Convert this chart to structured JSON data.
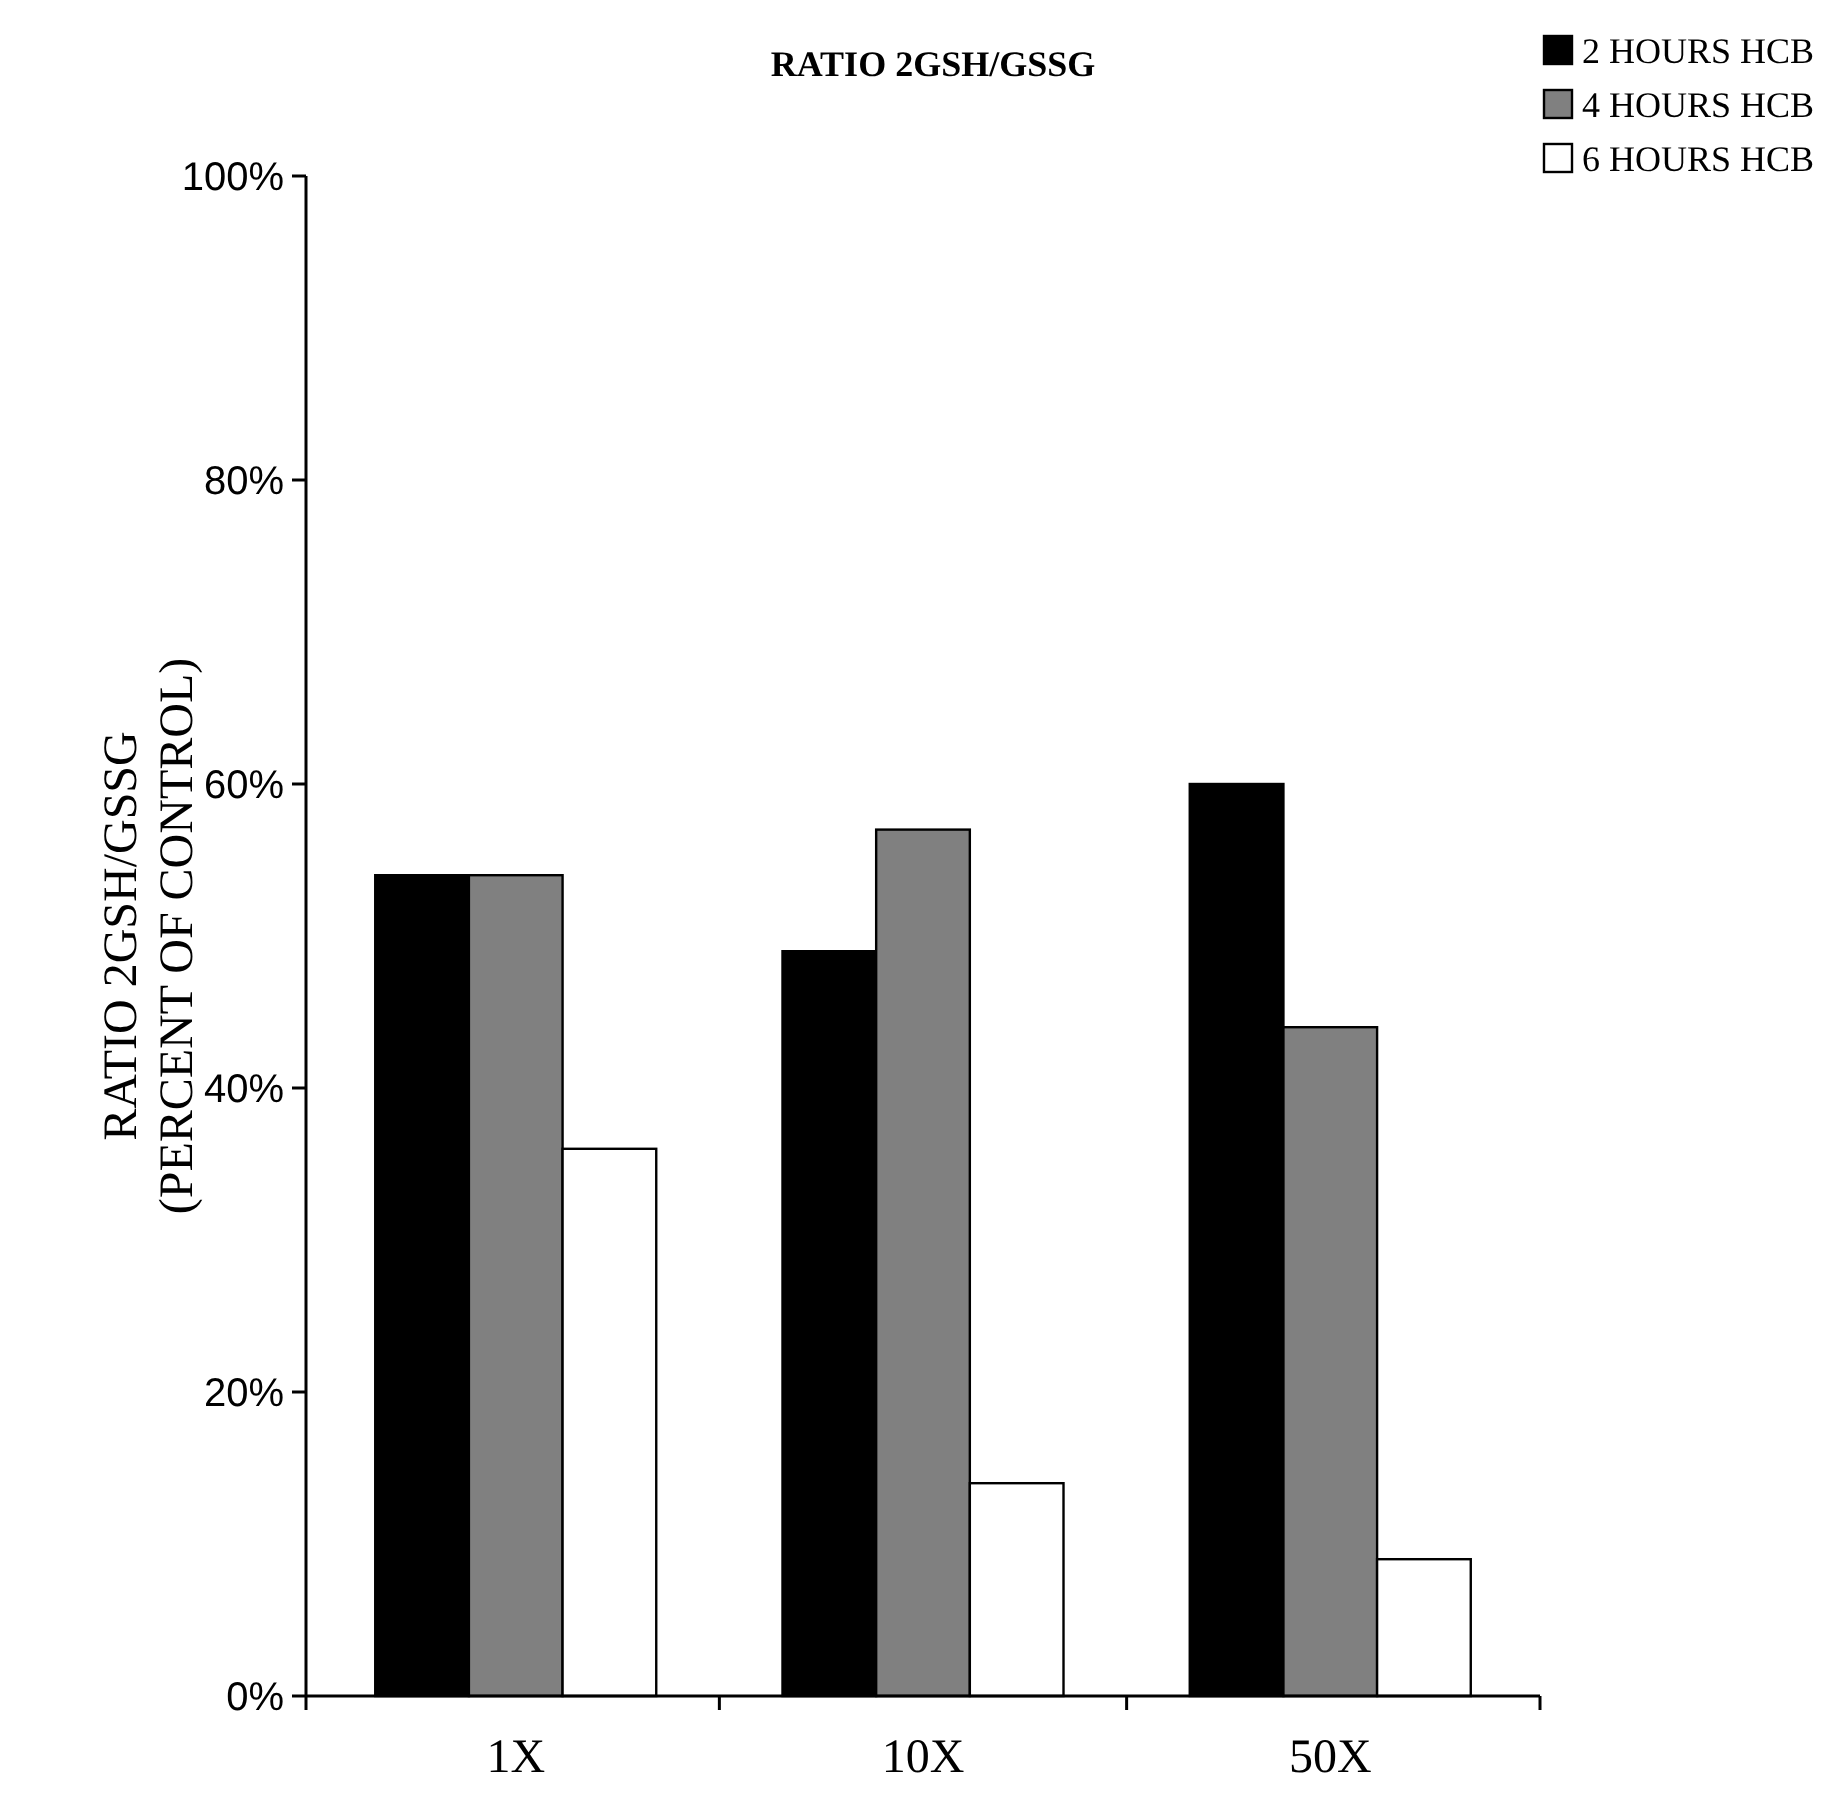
{
  "chart_data": {
    "type": "bar",
    "title": "RATIO 2GSH/GSSG",
    "ylabel": "RATIO 2GSH/GSSG\n(PERCENT OF CONTROL)",
    "categories": [
      "1X",
      "10X",
      "50X"
    ],
    "series": [
      {
        "name": "2 HOURS HCB",
        "color": "#000000",
        "values": [
          54,
          49,
          60
        ]
      },
      {
        "name": "4 HOURS HCB",
        "color": "#808080",
        "values": [
          54,
          57,
          44
        ]
      },
      {
        "name": "6 HOURS HCB",
        "color": "#ffffff",
        "values": [
          36,
          14,
          9
        ]
      }
    ],
    "ylim": [
      0,
      100
    ],
    "yticks": [
      {
        "value": 0,
        "label": "0%"
      },
      {
        "value": 20,
        "label": "20%"
      },
      {
        "value": 40,
        "label": "40%"
      },
      {
        "value": 60,
        "label": "60%"
      },
      {
        "value": 80,
        "label": "80%"
      },
      {
        "value": 100,
        "label": "100%"
      }
    ],
    "grid": false,
    "legend": "top right"
  }
}
